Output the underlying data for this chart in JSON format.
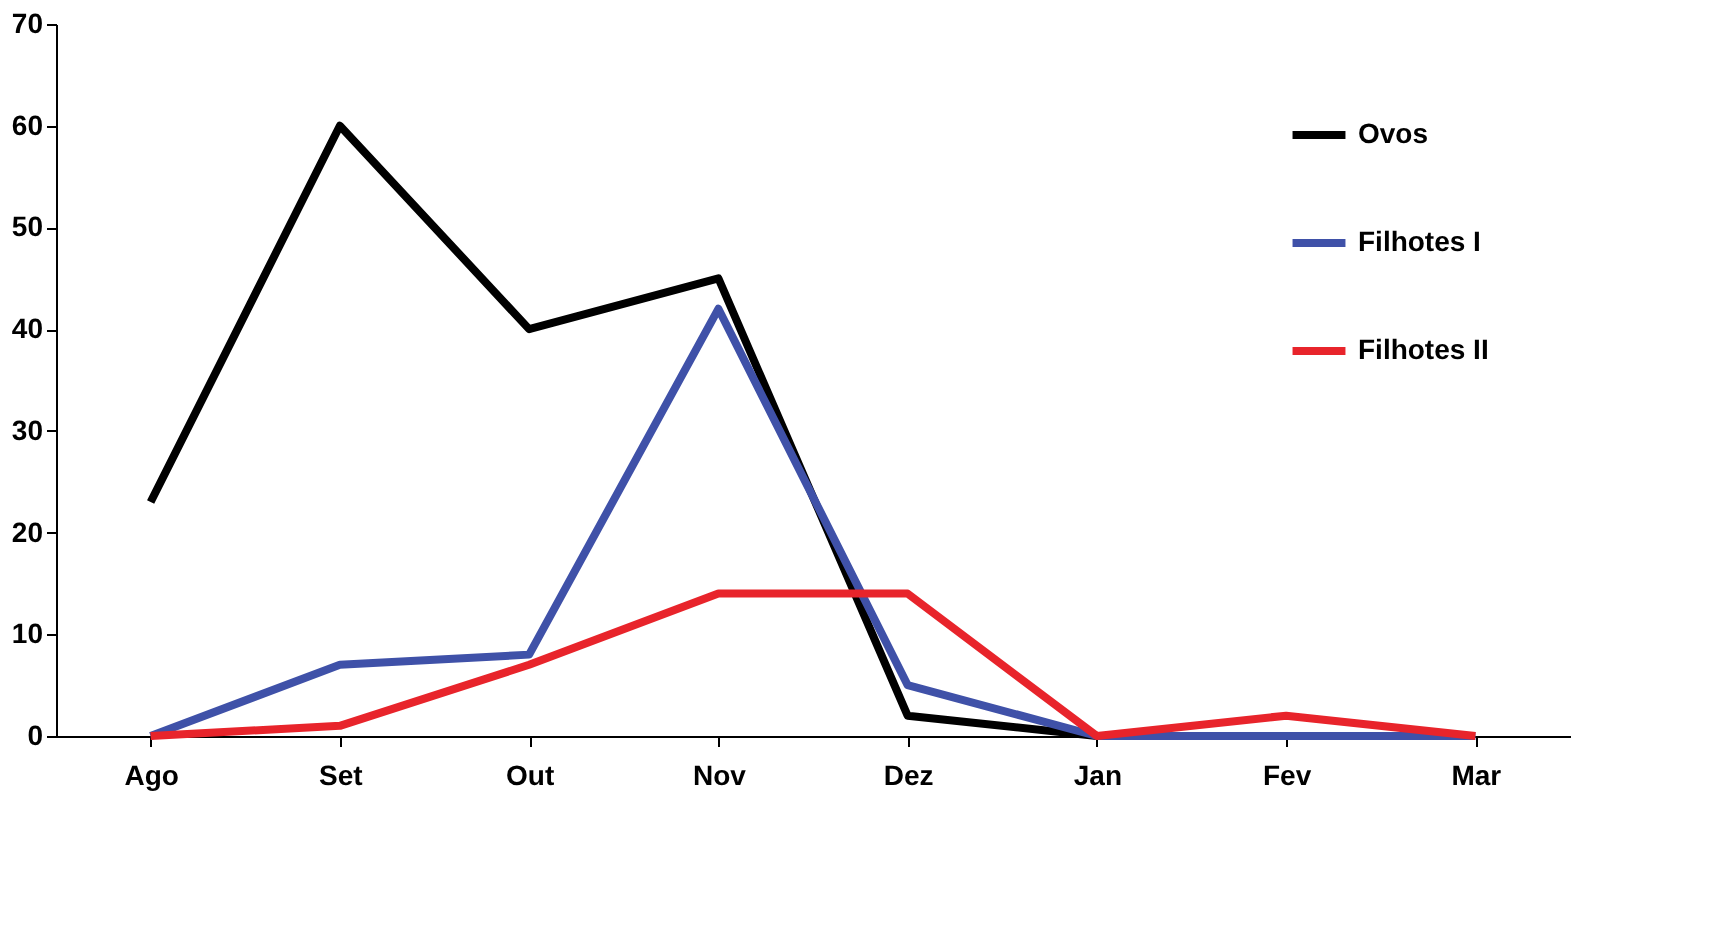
{
  "chart_data": {
    "type": "line",
    "categories": [
      "Ago",
      "Set",
      "Out",
      "Nov",
      "Dez",
      "Jan",
      "Fev",
      "Mar"
    ],
    "series": [
      {
        "name": "Ovos",
        "color": "#000000",
        "values": [
          23,
          60,
          40,
          45,
          2,
          0,
          null,
          null
        ]
      },
      {
        "name": "Filhotes I",
        "color": "#3f51a8",
        "values": [
          0,
          7,
          8,
          42,
          5,
          0,
          0,
          0
        ]
      },
      {
        "name": "Filhotes II",
        "color": "#e8242b",
        "values": [
          0,
          1,
          7,
          14,
          14,
          0,
          2,
          0
        ]
      }
    ],
    "ylim": [
      0,
      70
    ],
    "yticks": [
      0,
      10,
      20,
      30,
      40,
      50,
      60,
      70
    ],
    "grid": false,
    "legend": "top right",
    "marker": "none",
    "line_style": "solid"
  }
}
